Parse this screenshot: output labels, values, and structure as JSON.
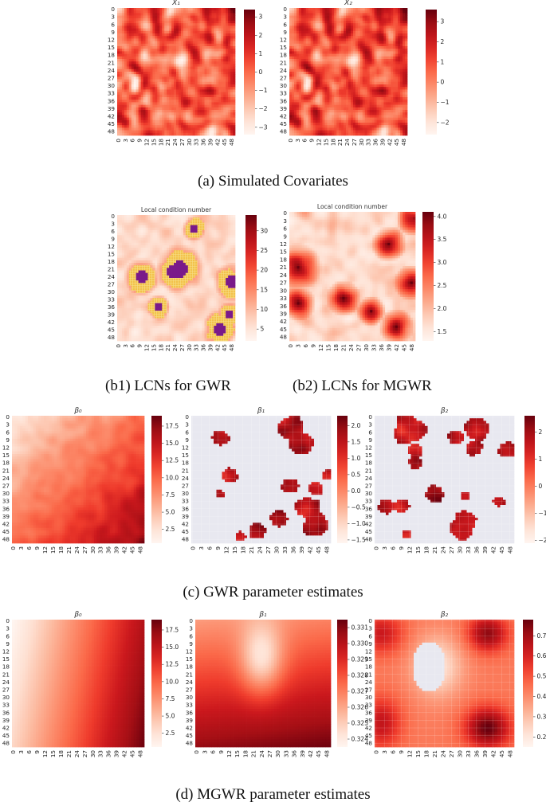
{
  "captions": {
    "a": "(a) Simulated Covariates",
    "b1": "(b1) LCNs for GWR",
    "b2": "(b2) LCNs for MGWR",
    "c": "(c) GWR parameter estimates",
    "d": "(d) MGWR parameter estimates"
  },
  "colors": {
    "reds_low": "#fff5f0",
    "reds_mid": "#fb6a4a",
    "reds_high": "#67000d",
    "masked": "#e8e8f0",
    "lcn_warn": "#f0b020",
    "lcn_severe": "#7a1a8a"
  },
  "chart_data": [
    {
      "type": "heatmap",
      "title": "X₁",
      "grid_size": 50,
      "tick_labels": [
        "0",
        "3",
        "6",
        "9",
        "12",
        "15",
        "18",
        "21",
        "24",
        "27",
        "30",
        "33",
        "36",
        "39",
        "42",
        "45",
        "48"
      ],
      "colorbar_ticks": [
        "3",
        "2",
        "1",
        "0",
        "−1",
        "−2",
        "−3"
      ],
      "value_range": [
        -3.4,
        3.4
      ],
      "pattern": "random spatially correlated field"
    },
    {
      "type": "heatmap",
      "title": "X₂",
      "grid_size": 50,
      "tick_labels": [
        "0",
        "3",
        "6",
        "9",
        "12",
        "15",
        "18",
        "21",
        "24",
        "27",
        "30",
        "33",
        "36",
        "39",
        "42",
        "45",
        "48"
      ],
      "colorbar_ticks": [
        "3",
        "2",
        "1",
        "0",
        "−1",
        "−2"
      ],
      "value_range": [
        -2.6,
        3.6
      ],
      "pattern": "random spatially correlated field"
    },
    {
      "type": "heatmap",
      "title": "Local condition number",
      "grid_size": 50,
      "tick_labels": [
        "0",
        "3",
        "6",
        "9",
        "12",
        "15",
        "18",
        "21",
        "24",
        "27",
        "30",
        "33",
        "36",
        "39",
        "42",
        "45",
        "48"
      ],
      "colorbar_ticks": [
        "30",
        "25",
        "20",
        "15",
        "10",
        "5"
      ],
      "value_range": [
        2,
        34
      ],
      "highlight": "cells above 10 hatched orange, above 30 purple"
    },
    {
      "type": "heatmap",
      "title": "Local condition number",
      "grid_size": 50,
      "tick_labels": [
        "0",
        "3",
        "6",
        "9",
        "12",
        "15",
        "18",
        "21",
        "24",
        "27",
        "30",
        "33",
        "36",
        "39",
        "42",
        "45",
        "48"
      ],
      "colorbar_ticks": [
        "4.0",
        "3.5",
        "3.0",
        "2.5",
        "2.0",
        "1.5"
      ],
      "value_range": [
        1.3,
        4.1
      ]
    },
    {
      "type": "heatmap",
      "title": "β₀",
      "grid_size": 50,
      "tick_labels": [
        "0",
        "3",
        "6",
        "9",
        "12",
        "15",
        "18",
        "21",
        "24",
        "27",
        "30",
        "33",
        "36",
        "39",
        "42",
        "45",
        "48"
      ],
      "colorbar_ticks": [
        "17.5",
        "15.0",
        "12.5",
        "10.0",
        "7.5",
        "5.0",
        "2.5"
      ],
      "value_range": [
        0.5,
        19
      ],
      "pattern": "increases from top-left to bottom-right"
    },
    {
      "type": "heatmap",
      "title": "β₁",
      "grid_size": 50,
      "tick_labels": [
        "0",
        "3",
        "6",
        "9",
        "12",
        "15",
        "18",
        "21",
        "24",
        "27",
        "30",
        "33",
        "36",
        "39",
        "42",
        "45",
        "48"
      ],
      "colorbar_ticks": [
        "2.0",
        "1.5",
        "1.0",
        "0.5",
        "0.0",
        "−0.5",
        "−1.0",
        "−1.5"
      ],
      "value_range": [
        -1.6,
        2.3
      ],
      "pattern": "mostly masked (insignificant), red patches significant"
    },
    {
      "type": "heatmap",
      "title": "β₂",
      "grid_size": 50,
      "tick_labels": [
        "0",
        "3",
        "6",
        "9",
        "12",
        "15",
        "18",
        "21",
        "24",
        "27",
        "30",
        "33",
        "36",
        "39",
        "42",
        "45",
        "48"
      ],
      "colorbar_ticks": [
        "2",
        "1",
        "0",
        "−1",
        "−2"
      ],
      "value_range": [
        -2.1,
        2.6
      ],
      "pattern": "mostly masked (insignificant), red patches significant"
    },
    {
      "type": "heatmap",
      "title": "β₀",
      "grid_size": 50,
      "tick_labels": [
        "0",
        "3",
        "6",
        "9",
        "12",
        "15",
        "18",
        "21",
        "24",
        "27",
        "30",
        "33",
        "36",
        "39",
        "42",
        "45",
        "48"
      ],
      "colorbar_ticks": [
        "17.5",
        "15.0",
        "12.5",
        "10.0",
        "7.5",
        "5.0",
        "2.5"
      ],
      "value_range": [
        0.5,
        19
      ],
      "pattern": "smooth gradient increasing left to right"
    },
    {
      "type": "heatmap",
      "title": "β₁",
      "grid_size": 50,
      "tick_labels": [
        "0",
        "3",
        "6",
        "9",
        "12",
        "15",
        "18",
        "21",
        "24",
        "27",
        "30",
        "33",
        "36",
        "39",
        "42",
        "45",
        "48"
      ],
      "colorbar_ticks": [
        "0.331",
        "0.330",
        "0.329",
        "0.328",
        "0.327",
        "0.326",
        "0.325",
        "0.324"
      ],
      "value_range": [
        0.3235,
        0.3315
      ],
      "pattern": "smooth, low spot near center, high toward bottom"
    },
    {
      "type": "heatmap",
      "title": "β₂",
      "grid_size": 50,
      "tick_labels": [
        "0",
        "3",
        "6",
        "9",
        "12",
        "15",
        "18",
        "21",
        "24",
        "27",
        "30",
        "33",
        "36",
        "39",
        "42",
        "45",
        "48"
      ],
      "colorbar_ticks": [
        "0.7",
        "0.6",
        "0.5",
        "0.4",
        "0.3",
        "0.2"
      ],
      "value_range": [
        0.15,
        0.78
      ],
      "pattern": "smooth with masked ellipse at center-left"
    }
  ]
}
